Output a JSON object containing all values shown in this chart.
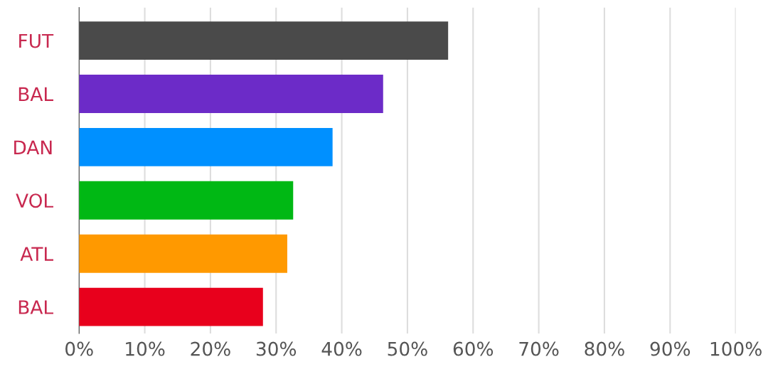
{
  "chart_data": {
    "type": "bar",
    "orientation": "horizontal",
    "categories": [
      "FUT",
      "BAL",
      "DAN",
      "VOL",
      "ATL",
      "BAL"
    ],
    "values": [
      56.2,
      46.3,
      38.6,
      32.6,
      31.7,
      28.0
    ],
    "colors": [
      "#4a4a4a",
      "#6c2bc8",
      "#0090ff",
      "#00b814",
      "#ff9900",
      "#e8001c"
    ],
    "xlim": [
      0,
      100
    ],
    "xticks": [
      {
        "value": 0,
        "label": "0%"
      },
      {
        "value": 10,
        "label": "10%"
      },
      {
        "value": 20,
        "label": "20%"
      },
      {
        "value": 30,
        "label": "30%"
      },
      {
        "value": 40,
        "label": "40%"
      },
      {
        "value": 50,
        "label": "50%"
      },
      {
        "value": 60,
        "label": "60%"
      },
      {
        "value": 70,
        "label": "70%"
      },
      {
        "value": 80,
        "label": "80%"
      },
      {
        "value": 90,
        "label": "90%"
      },
      {
        "value": 100,
        "label": "100%"
      }
    ],
    "grid": "x"
  }
}
